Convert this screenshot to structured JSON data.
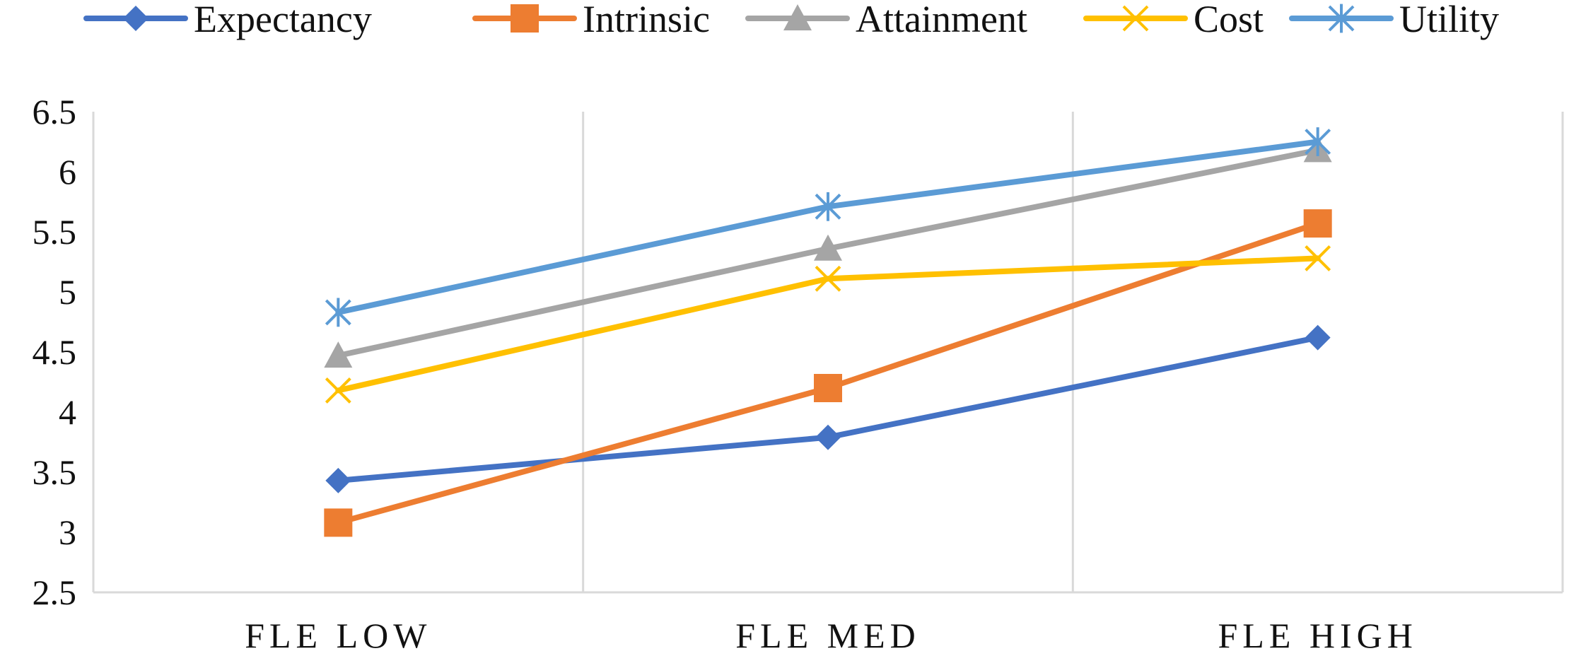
{
  "chart_data": {
    "type": "line",
    "title": "",
    "xlabel": "",
    "ylabel": "",
    "categories": [
      "FLE LOW",
      "FLE MED",
      "FLE HIGH"
    ],
    "ylim": [
      2.5,
      6.5
    ],
    "ytick_step": 0.5,
    "yticks": [
      "2.5",
      "3",
      "3.5",
      "4",
      "4.5",
      "5",
      "5.5",
      "6",
      "6.5"
    ],
    "grid": "vertical-between-categories",
    "legend_position": "top",
    "series": [
      {
        "name": "Expectancy",
        "values": [
          3.43,
          3.79,
          4.62
        ],
        "color": "#4472C4",
        "marker": "diamond"
      },
      {
        "name": "Intrinsic",
        "values": [
          3.08,
          4.2,
          5.57
        ],
        "color": "#ED7D31",
        "marker": "square"
      },
      {
        "name": "Attainment",
        "values": [
          4.47,
          5.36,
          6.18
        ],
        "color": "#A5A5A5",
        "marker": "triangle"
      },
      {
        "name": "Cost",
        "values": [
          4.18,
          5.11,
          5.28
        ],
        "color": "#FFC000",
        "marker": "x"
      },
      {
        "name": "Utility",
        "values": [
          4.83,
          5.71,
          6.25
        ],
        "color": "#5B9BD5",
        "marker": "asterisk"
      }
    ]
  }
}
